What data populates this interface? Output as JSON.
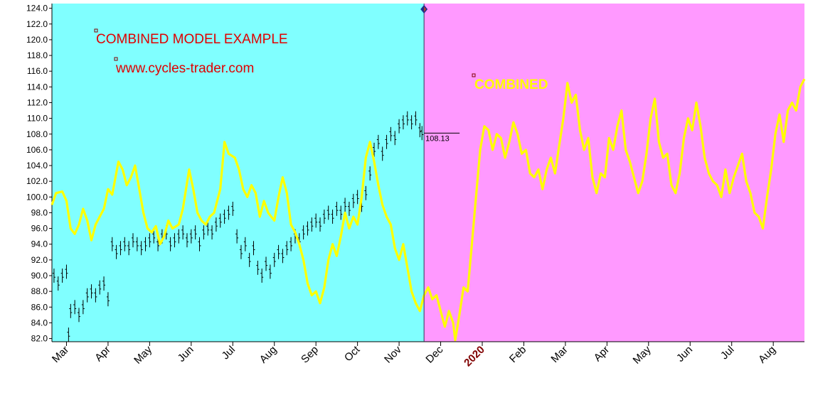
{
  "chart_data": {
    "type": "line",
    "y_axis": {
      "range": [
        81.6,
        124.6
      ],
      "ticks": [
        "82.0",
        "84.0",
        "86.0",
        "88.0",
        "90.0",
        "92.0",
        "94.0",
        "96.0",
        "98.0",
        "100.0",
        "102.0",
        "104.0",
        "106.0",
        "108.0",
        "110.0",
        "112.0",
        "114.0",
        "116.0",
        "118.0",
        "120.0",
        "122.0",
        "124.0"
      ]
    },
    "x_axis": {
      "ticks": [
        "Mar",
        "Apr",
        "May",
        "Jun",
        "Jul",
        "Aug",
        "Sep",
        "Oct",
        "Nov",
        "Dec",
        "2020",
        "Feb",
        "Mar",
        "Apr",
        "May",
        "Jun",
        "Jul",
        "Aug"
      ],
      "year_tick": "2020",
      "range_months": [
        -0.35,
        17.75
      ]
    },
    "regions": [
      {
        "name": "history",
        "x_range": [
          -0.35,
          8.6
        ],
        "color": "#80ffff"
      },
      {
        "name": "projection",
        "x_range": [
          8.6,
          17.75
        ],
        "color": "#ff99ff"
      }
    ],
    "annotations": {
      "title": "COMBINED MODEL EXAMPLE",
      "website": "www.cycles-trader.com",
      "series_label": "COMBINED",
      "last_price": "108.13"
    },
    "last_price_value": 108.13,
    "series": [
      {
        "name": "COMBINED",
        "type": "line",
        "color": "#ffff00",
        "points": [
          [
            -0.35,
            99.0
          ],
          [
            -0.25,
            100.5
          ],
          [
            -0.1,
            100.7
          ],
          [
            0.0,
            99.5
          ],
          [
            0.1,
            96.0
          ],
          [
            0.2,
            95.3
          ],
          [
            0.3,
            96.5
          ],
          [
            0.4,
            98.5
          ],
          [
            0.5,
            97.0
          ],
          [
            0.6,
            94.5
          ],
          [
            0.7,
            96.5
          ],
          [
            0.8,
            97.5
          ],
          [
            0.9,
            98.5
          ],
          [
            1.0,
            101.0
          ],
          [
            1.1,
            100.3
          ],
          [
            1.25,
            104.5
          ],
          [
            1.35,
            103.5
          ],
          [
            1.45,
            101.5
          ],
          [
            1.55,
            102.5
          ],
          [
            1.65,
            104.0
          ],
          [
            1.75,
            101.0
          ],
          [
            1.85,
            98.0
          ],
          [
            1.95,
            96.0
          ],
          [
            2.05,
            95.5
          ],
          [
            2.15,
            96.3
          ],
          [
            2.25,
            94.0
          ],
          [
            2.35,
            95.0
          ],
          [
            2.45,
            97.0
          ],
          [
            2.55,
            96.0
          ],
          [
            2.7,
            96.5
          ],
          [
            2.8,
            98.5
          ],
          [
            2.95,
            103.5
          ],
          [
            3.05,
            101.0
          ],
          [
            3.15,
            98.0
          ],
          [
            3.25,
            97.0
          ],
          [
            3.35,
            96.5
          ],
          [
            3.45,
            97.5
          ],
          [
            3.55,
            98.0
          ],
          [
            3.7,
            101.0
          ],
          [
            3.8,
            107.0
          ],
          [
            3.9,
            105.5
          ],
          [
            4.05,
            105.0
          ],
          [
            4.15,
            103.5
          ],
          [
            4.25,
            101.0
          ],
          [
            4.35,
            100.0
          ],
          [
            4.45,
            101.5
          ],
          [
            4.55,
            100.5
          ],
          [
            4.65,
            97.5
          ],
          [
            4.75,
            99.5
          ],
          [
            4.85,
            98.0
          ],
          [
            5.0,
            97.0
          ],
          [
            5.1,
            100.0
          ],
          [
            5.2,
            102.5
          ],
          [
            5.3,
            100.5
          ],
          [
            5.4,
            96.5
          ],
          [
            5.5,
            95.5
          ],
          [
            5.6,
            94.0
          ],
          [
            5.7,
            92.0
          ],
          [
            5.8,
            89.0
          ],
          [
            5.9,
            87.5
          ],
          [
            6.0,
            88.0
          ],
          [
            6.1,
            86.5
          ],
          [
            6.2,
            88.5
          ],
          [
            6.3,
            92.0
          ],
          [
            6.4,
            94.0
          ],
          [
            6.5,
            92.5
          ],
          [
            6.6,
            95.0
          ],
          [
            6.7,
            98.0
          ],
          [
            6.8,
            96.0
          ],
          [
            6.9,
            97.5
          ],
          [
            7.0,
            96.5
          ],
          [
            7.1,
            100.0
          ],
          [
            7.2,
            105.0
          ],
          [
            7.3,
            107.0
          ],
          [
            7.4,
            104.5
          ],
          [
            7.5,
            101.5
          ],
          [
            7.6,
            99.0
          ],
          [
            7.7,
            97.5
          ],
          [
            7.8,
            96.5
          ],
          [
            7.9,
            93.5
          ],
          [
            8.0,
            92.0
          ],
          [
            8.1,
            94.0
          ],
          [
            8.2,
            91.0
          ],
          [
            8.3,
            88.0
          ],
          [
            8.4,
            86.5
          ],
          [
            8.5,
            85.5
          ],
          [
            8.6,
            87.5
          ],
          [
            8.7,
            88.5
          ],
          [
            8.8,
            87.0
          ],
          [
            8.9,
            87.5
          ],
          [
            9.0,
            85.5
          ],
          [
            9.1,
            83.5
          ],
          [
            9.2,
            85.5
          ],
          [
            9.3,
            84.0
          ],
          [
            9.35,
            81.8
          ],
          [
            9.45,
            85.0
          ],
          [
            9.55,
            88.5
          ],
          [
            9.65,
            88.0
          ],
          [
            9.75,
            94.0
          ],
          [
            9.85,
            100.0
          ],
          [
            9.95,
            106.0
          ],
          [
            10.05,
            109.0
          ],
          [
            10.15,
            108.5
          ],
          [
            10.25,
            106.0
          ],
          [
            10.35,
            108.0
          ],
          [
            10.45,
            107.5
          ],
          [
            10.55,
            105.0
          ],
          [
            10.65,
            107.0
          ],
          [
            10.75,
            109.5
          ],
          [
            10.85,
            108.0
          ],
          [
            10.95,
            105.5
          ],
          [
            11.05,
            106.0
          ],
          [
            11.15,
            103.0
          ],
          [
            11.25,
            102.5
          ],
          [
            11.35,
            103.5
          ],
          [
            11.45,
            101.0
          ],
          [
            11.55,
            103.5
          ],
          [
            11.65,
            105.0
          ],
          [
            11.75,
            103.0
          ],
          [
            11.85,
            106.5
          ],
          [
            11.95,
            110.0
          ],
          [
            12.05,
            114.5
          ],
          [
            12.15,
            112.0
          ],
          [
            12.25,
            113.0
          ],
          [
            12.35,
            108.5
          ],
          [
            12.45,
            106.0
          ],
          [
            12.55,
            107.5
          ],
          [
            12.65,
            102.5
          ],
          [
            12.75,
            100.5
          ],
          [
            12.85,
            103.0
          ],
          [
            12.95,
            102.5
          ],
          [
            13.05,
            107.5
          ],
          [
            13.15,
            106.0
          ],
          [
            13.25,
            109.0
          ],
          [
            13.35,
            111.0
          ],
          [
            13.45,
            106.0
          ],
          [
            13.55,
            104.5
          ],
          [
            13.65,
            102.5
          ],
          [
            13.75,
            100.5
          ],
          [
            13.85,
            102.0
          ],
          [
            13.95,
            105.5
          ],
          [
            14.05,
            110.0
          ],
          [
            14.15,
            112.5
          ],
          [
            14.25,
            107.0
          ],
          [
            14.35,
            105.0
          ],
          [
            14.45,
            105.5
          ],
          [
            14.55,
            101.5
          ],
          [
            14.65,
            100.5
          ],
          [
            14.75,
            103.0
          ],
          [
            14.85,
            107.5
          ],
          [
            14.95,
            110.0
          ],
          [
            15.05,
            108.5
          ],
          [
            15.15,
            112.0
          ],
          [
            15.25,
            109.0
          ],
          [
            15.35,
            105.0
          ],
          [
            15.45,
            103.0
          ],
          [
            15.55,
            102.0
          ],
          [
            15.65,
            101.5
          ],
          [
            15.75,
            100.0
          ],
          [
            15.85,
            103.5
          ],
          [
            15.95,
            100.5
          ],
          [
            16.05,
            102.5
          ],
          [
            16.15,
            104.0
          ],
          [
            16.25,
            105.5
          ],
          [
            16.35,
            102.0
          ],
          [
            16.45,
            100.5
          ],
          [
            16.55,
            98.0
          ],
          [
            16.65,
            97.5
          ],
          [
            16.75,
            96.0
          ],
          [
            16.85,
            100.0
          ],
          [
            16.95,
            103.5
          ],
          [
            17.05,
            108.0
          ],
          [
            17.15,
            110.5
          ],
          [
            17.25,
            107.0
          ],
          [
            17.35,
            111.0
          ],
          [
            17.45,
            112.0
          ],
          [
            17.55,
            111.0
          ],
          [
            17.65,
            114.0
          ],
          [
            17.75,
            115.0
          ]
        ]
      },
      {
        "name": "price",
        "type": "bars",
        "color": "#000000",
        "points": [
          [
            -0.3,
            90.0
          ],
          [
            -0.2,
            89.0
          ],
          [
            -0.1,
            90.0
          ],
          [
            0.0,
            90.5
          ],
          [
            0.05,
            82.5
          ],
          [
            0.1,
            85.5
          ],
          [
            0.2,
            86.0
          ],
          [
            0.3,
            85.0
          ],
          [
            0.4,
            86.0
          ],
          [
            0.5,
            87.5
          ],
          [
            0.6,
            88.0
          ],
          [
            0.7,
            87.5
          ],
          [
            0.8,
            88.5
          ],
          [
            0.9,
            89.0
          ],
          [
            1.0,
            87.0
          ],
          [
            1.1,
            94.0
          ],
          [
            1.2,
            93.0
          ],
          [
            1.3,
            93.5
          ],
          [
            1.4,
            94.0
          ],
          [
            1.5,
            93.5
          ],
          [
            1.6,
            94.5
          ],
          [
            1.7,
            94.0
          ],
          [
            1.8,
            93.5
          ],
          [
            1.9,
            94.0
          ],
          [
            2.0,
            94.5
          ],
          [
            2.1,
            95.0
          ],
          [
            2.2,
            94.0
          ],
          [
            2.3,
            95.0
          ],
          [
            2.4,
            95.5
          ],
          [
            2.5,
            94.0
          ],
          [
            2.6,
            94.5
          ],
          [
            2.7,
            95.0
          ],
          [
            2.8,
            95.5
          ],
          [
            2.9,
            94.5
          ],
          [
            3.0,
            95.0
          ],
          [
            3.1,
            95.5
          ],
          [
            3.2,
            94.0
          ],
          [
            3.3,
            95.5
          ],
          [
            3.4,
            96.0
          ],
          [
            3.5,
            95.5
          ],
          [
            3.6,
            96.5
          ],
          [
            3.7,
            97.0
          ],
          [
            3.8,
            97.5
          ],
          [
            3.9,
            98.0
          ],
          [
            4.0,
            98.5
          ],
          [
            4.1,
            95.0
          ],
          [
            4.2,
            93.0
          ],
          [
            4.3,
            94.0
          ],
          [
            4.4,
            92.0
          ],
          [
            4.5,
            93.5
          ],
          [
            4.6,
            91.0
          ],
          [
            4.7,
            90.0
          ],
          [
            4.8,
            91.5
          ],
          [
            4.9,
            90.5
          ],
          [
            5.0,
            92.0
          ],
          [
            5.1,
            93.0
          ],
          [
            5.2,
            92.5
          ],
          [
            5.3,
            93.5
          ],
          [
            5.4,
            94.0
          ],
          [
            5.5,
            95.0
          ],
          [
            5.6,
            94.5
          ],
          [
            5.7,
            95.5
          ],
          [
            5.8,
            96.0
          ],
          [
            5.9,
            96.5
          ],
          [
            6.0,
            97.0
          ],
          [
            6.1,
            96.5
          ],
          [
            6.2,
            97.5
          ],
          [
            6.3,
            98.0
          ],
          [
            6.4,
            97.5
          ],
          [
            6.5,
            98.5
          ],
          [
            6.6,
            98.0
          ],
          [
            6.7,
            99.0
          ],
          [
            6.8,
            98.5
          ],
          [
            6.9,
            99.5
          ],
          [
            7.0,
            100.0
          ],
          [
            7.1,
            99.0
          ],
          [
            7.2,
            100.5
          ],
          [
            7.3,
            103.0
          ],
          [
            7.4,
            106.0
          ],
          [
            7.5,
            107.0
          ],
          [
            7.6,
            105.5
          ],
          [
            7.7,
            107.0
          ],
          [
            7.8,
            108.0
          ],
          [
            7.9,
            107.5
          ],
          [
            8.0,
            109.0
          ],
          [
            8.1,
            109.5
          ],
          [
            8.2,
            110.0
          ],
          [
            8.3,
            109.5
          ],
          [
            8.4,
            110.0
          ],
          [
            8.5,
            108.5
          ],
          [
            8.55,
            108.13
          ]
        ]
      }
    ]
  }
}
